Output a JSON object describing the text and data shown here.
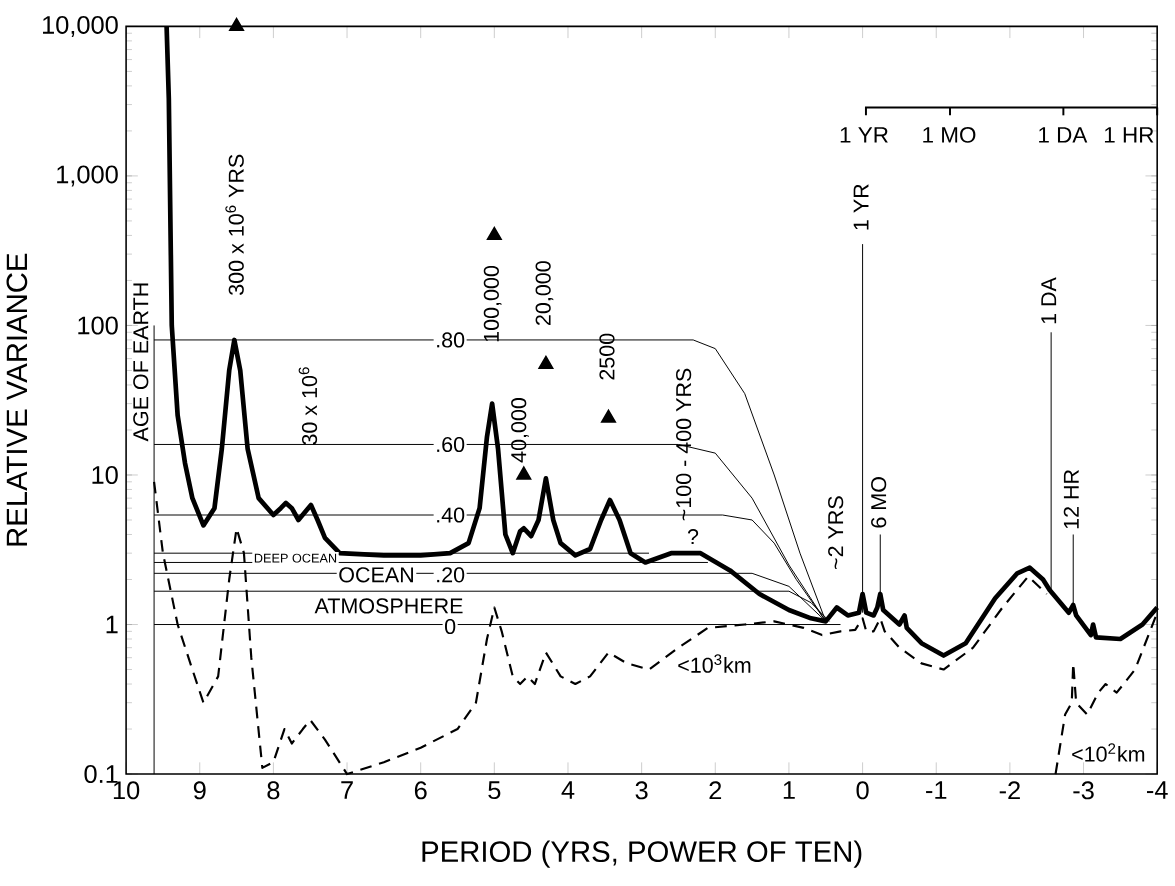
{
  "chart_data": {
    "type": "line",
    "xlabel": "PERIOD (YRS, POWER OF TEN)",
    "ylabel": "RELATIVE VARIANCE",
    "log": "y",
    "marker": "none",
    "xlim": [
      10,
      -4
    ],
    "xticks": [
      10,
      9,
      8,
      7,
      6,
      5,
      4,
      3,
      2,
      1,
      0,
      -1,
      -2,
      -3,
      -4
    ],
    "ylim": [
      0.1,
      10000
    ],
    "yticks": [
      0.1,
      1,
      10,
      100,
      {
        "value": 1000,
        "label": "1,000"
      },
      {
        "value": 10000,
        "label": "10,000"
      }
    ],
    "series": [
      {
        "color": "#000000",
        "x": [
          9.45,
          9.42,
          9.38,
          9.3,
          9.2,
          9.1,
          8.95,
          8.8,
          8.7,
          8.6,
          8.53,
          8.45,
          8.35,
          8.2,
          8.0,
          7.9,
          7.83,
          7.75,
          7.66,
          7.55,
          7.49,
          7.4,
          7.3,
          7.1,
          6.5,
          6.0,
          5.6,
          5.35,
          5.2,
          5.1,
          5.03,
          4.95,
          4.85,
          4.75,
          4.65,
          4.6,
          4.5,
          4.4,
          4.3,
          4.2,
          4.1,
          3.9,
          3.7,
          3.55,
          3.43,
          3.3,
          3.15,
          2.95,
          2.6,
          2.2,
          1.8,
          1.4,
          1.0,
          0.7,
          0.5,
          0.35,
          0.2,
          0.05,
          0.0,
          -0.05,
          -0.15,
          -0.2,
          -0.24,
          -0.28,
          -0.5,
          -0.57,
          -0.6,
          -0.8,
          -1.1,
          -1.4,
          -1.8,
          -2.1,
          -2.27,
          -2.45,
          -2.54,
          -2.8,
          -2.86,
          -2.9,
          -3.1,
          -3.13,
          -3.17,
          -3.5,
          -3.8,
          -4.0
        ],
        "values": [
          10000,
          3300,
          100,
          25,
          12,
          7,
          4.6,
          6,
          15,
          50,
          80,
          50,
          15,
          7,
          5.4,
          6,
          6.5,
          6,
          5.0,
          5.8,
          6.3,
          5,
          3.8,
          3.0,
          2.9,
          2.9,
          3.0,
          3.5,
          6,
          18,
          30,
          15,
          4,
          3.0,
          4.2,
          4.4,
          3.9,
          5,
          9.5,
          5,
          3.5,
          2.9,
          3.2,
          5,
          6.8,
          5,
          3,
          2.6,
          3.0,
          3.0,
          2.3,
          1.6,
          1.25,
          1.1,
          1.05,
          1.3,
          1.15,
          1.2,
          1.6,
          1.2,
          1.15,
          1.3,
          1.6,
          1.25,
          1.0,
          1.15,
          0.95,
          0.75,
          0.62,
          0.75,
          1.5,
          2.2,
          2.4,
          2.0,
          1.7,
          1.2,
          1.35,
          1.15,
          0.85,
          1.0,
          0.82,
          0.8,
          1.0,
          1.3
        ]
      },
      {
        "color": "#000000",
        "line_style": "dashed",
        "x": [
          9.62,
          9.5,
          9.3,
          9.1,
          8.95,
          8.75,
          8.6,
          8.5,
          8.4,
          8.3,
          8.15,
          8.0,
          7.85,
          7.75,
          7.6,
          7.5,
          7.3,
          7.0,
          6.5,
          6.0,
          5.5,
          5.25,
          5.1,
          5.0,
          4.9,
          4.75,
          4.65,
          4.55,
          4.45,
          4.3,
          4.1,
          3.9,
          3.7,
          3.45,
          3.2,
          2.9,
          2.5,
          2.1,
          1.6,
          1.2,
          0.8,
          0.55,
          0.3,
          0.1,
          0.0,
          -0.05,
          -0.15,
          -0.24,
          -0.3,
          -0.35,
          -0.5,
          -0.8,
          -1.1,
          -1.5,
          -1.9,
          -2.25,
          -2.5,
          -2.56,
          -2.62,
          -2.75,
          -2.84,
          -2.86,
          -2.9,
          -3.05,
          -3.2,
          -3.3,
          -3.45,
          -3.7,
          -4.0
        ],
        "values": [
          9,
          3,
          1,
          0.5,
          0.3,
          0.45,
          2,
          4.4,
          3,
          0.6,
          0.11,
          0.12,
          0.2,
          0.16,
          0.2,
          0.23,
          0.17,
          0.1,
          0.12,
          0.15,
          0.2,
          0.3,
          0.8,
          1.3,
          0.9,
          0.45,
          0.4,
          0.45,
          0.4,
          0.65,
          0.45,
          0.4,
          0.45,
          0.65,
          0.55,
          0.5,
          0.7,
          0.95,
          1.0,
          1.05,
          0.95,
          0.85,
          0.9,
          0.92,
          1.1,
          0.9,
          0.9,
          1.1,
          0.9,
          0.85,
          0.7,
          0.55,
          0.5,
          0.7,
          1.3,
          2.1,
          1.6,
          null,
          0.1,
          0.25,
          0.3,
          0.55,
          0.3,
          0.25,
          0.35,
          0.4,
          0.35,
          0.5,
          1.2
        ]
      },
      {
        "color": "#000000",
        "x": [
          9.62,
          2.3,
          2.0,
          1.6,
          1.2,
          0.85,
          0.5
        ],
        "values": [
          80,
          80,
          70,
          35,
          10,
          3,
          1.05
        ]
      },
      {
        "color": "#000000",
        "x": [
          9.62,
          2.5,
          2.0,
          1.5,
          1.0,
          0.5
        ],
        "values": [
          16,
          16,
          14,
          7,
          2.5,
          1.05
        ]
      },
      {
        "color": "#000000",
        "x": [
          9.62,
          1.9,
          1.5,
          1.2,
          0.9,
          0.5
        ],
        "values": [
          5.4,
          5.4,
          5,
          3.5,
          2,
          1.05
        ]
      },
      {
        "color": "#000000",
        "x": [
          9.62,
          2.9
        ],
        "values": [
          3.0,
          3.0
        ]
      },
      {
        "color": "#000000",
        "x": [
          9.62,
          2.1
        ],
        "values": [
          2.6,
          2.6
        ]
      },
      {
        "color": "#000000",
        "x": [
          9.62,
          1.5,
          1.0,
          0.5
        ],
        "values": [
          2.2,
          2.2,
          1.8,
          1.05
        ]
      },
      {
        "color": "#000000",
        "x": [
          9.62,
          1.0,
          0.7,
          0.45
        ],
        "values": [
          1.67,
          1.67,
          1.4,
          1.05
        ]
      },
      {
        "color": "#000000",
        "x": [
          9.62,
          0.3
        ],
        "values": [
          1.0,
          1.0
        ]
      },
      {
        "color": "#000000",
        "x": [
          9.62,
          9.62
        ],
        "values": [
          0.1,
          100
        ]
      },
      {
        "color": "#000000",
        "x": [
          0,
          0
        ],
        "values": [
          1.2,
          350
        ]
      },
      {
        "color": "#000000",
        "x": [
          -0.24,
          -0.24
        ],
        "values": [
          1.5,
          4
        ]
      },
      {
        "color": "#000000",
        "x": [
          -2.56,
          -2.56
        ],
        "values": [
          1.6,
          90
        ]
      },
      {
        "color": "#000000",
        "x": [
          -2.86,
          -2.86
        ],
        "values": [
          1.3,
          4
        ]
      },
      {
        "type": "scatter",
        "marker": "triangle",
        "color": "#000000",
        "x": [
          8.5,
          5.0,
          4.6,
          4.3,
          3.45
        ],
        "values": [
          10000,
          400,
          10,
          55,
          24
        ]
      }
    ],
    "annotations": [
      "300 x 10$^{6}$ YRS",
      "30 x 10$^{6}$",
      "AGE OF EARTH",
      "100,000",
      "40,000",
      "20,000",
      "2500",
      {
        "text": "~100 - 400 YRS",
        "x": 2.43,
        "y": 16
      },
      "?",
      "~2 YRS",
      "1 YR",
      "6 MO",
      "1 DA",
      "12 HR",
      {
        "text": ".80",
        "x": 5.6,
        "y": 80
      },
      {
        "text": ".60",
        "x": 5.6,
        "y": 16
      },
      {
        "text": ".40",
        "x": 5.6,
        "y": 5.4
      },
      {
        "text": "DEEP OCEAN",
        "x": 7.7,
        "y": 2.78
      },
      {
        "text": "OCEAN",
        "x": 6.6,
        "y": 2.15
      },
      {
        "text": ".20",
        "x": 5.6,
        "y": 2.15
      },
      {
        "text": "0",
        "x": 5.6,
        "y": 0.97
      },
      "ATMOSPHERE",
      "<10$^{3}$km",
      "<10$^{2}$km",
      "1 YR",
      "1 MO",
      "1 DA",
      "1 HR"
    ]
  }
}
